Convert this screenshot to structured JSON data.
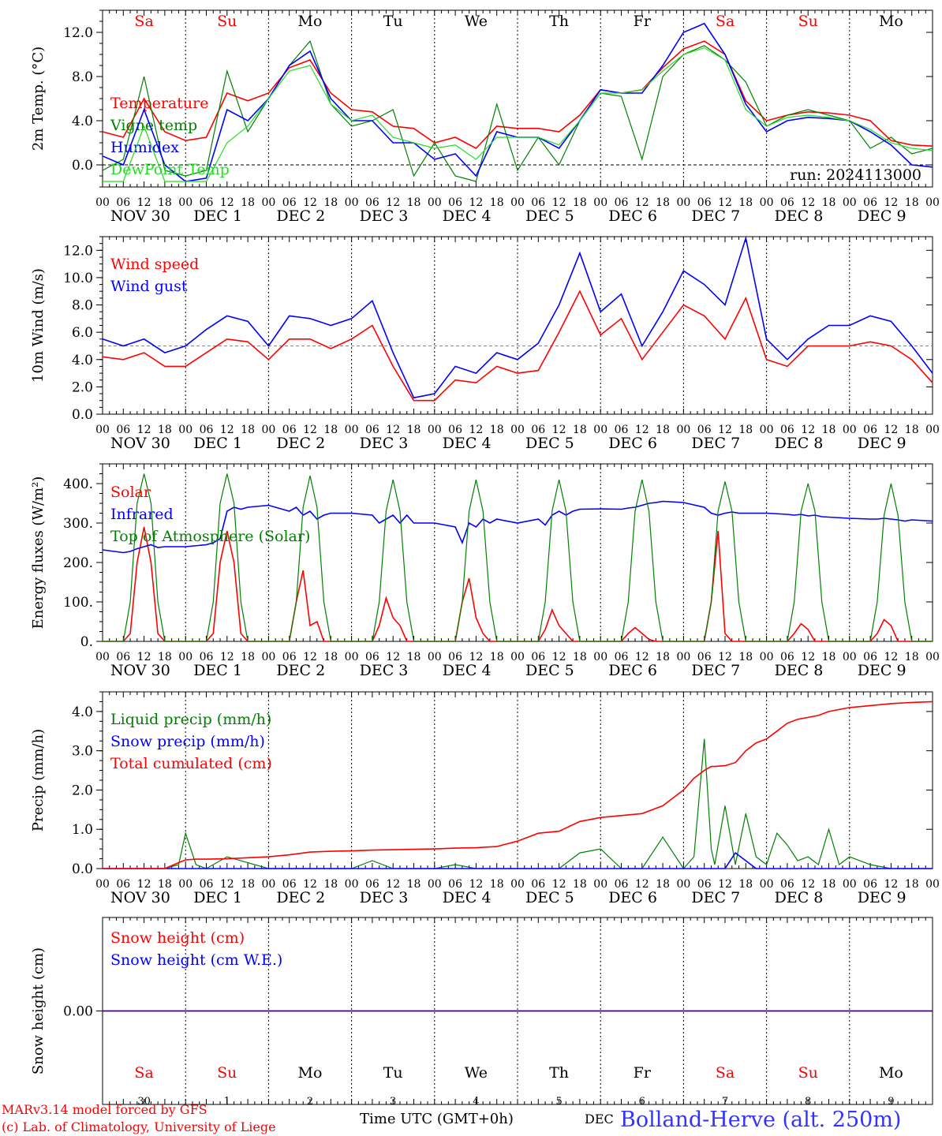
{
  "run_label": "run: 2024113000",
  "footer": {
    "line1": "MARv3.14 model forced by GFS",
    "line2": "(c) Lab. of Climatology, University of Liege",
    "xlabel": "Time UTC (GMT+0h)",
    "month": "DEC",
    "station": "Bolland-Herve (alt. 250m)"
  },
  "days": {
    "names": [
      "Sa",
      "Su",
      "Mo",
      "Tu",
      "We",
      "Th",
      "Fr",
      "Sa",
      "Su",
      "Mo"
    ],
    "weekend": [
      true,
      true,
      false,
      false,
      false,
      false,
      false,
      true,
      true,
      false
    ],
    "date_labels": [
      "NOV 30",
      "DEC  1",
      "DEC  2",
      "DEC  3",
      "DEC  4",
      "DEC  5",
      "DEC  6",
      "DEC  7",
      "DEC  8",
      "DEC  9"
    ],
    "day_numbers": [
      "30",
      "1",
      "2",
      "3",
      "4",
      "5",
      "6",
      "7",
      "8",
      "9"
    ],
    "hour_ticks": [
      "00",
      "06",
      "12",
      "18"
    ],
    "final_tick": "00"
  },
  "colors": {
    "red": "#ff0000",
    "green": "#008000",
    "blue": "#0000ff",
    "lightgreen": "#22dd22",
    "gray": "#888888"
  },
  "chart_data": [
    {
      "type": "line",
      "ylabel": "2m Temp. (°C)",
      "ylim": [
        -2.0,
        14.0
      ],
      "yticks": [
        0.0,
        4.0,
        8.0,
        12.0
      ],
      "ytick_labels": [
        "0.0",
        "4.0",
        "8.0",
        "12.0"
      ],
      "ref_line": 0.0,
      "x_hours": [
        0,
        6,
        12,
        18,
        24,
        30,
        36,
        42,
        48,
        54,
        60,
        66,
        72,
        78,
        84,
        90,
        96,
        102,
        108,
        114,
        120,
        126,
        132,
        138,
        144,
        150,
        156,
        162,
        168,
        174,
        180,
        186,
        192,
        198,
        204,
        210,
        216,
        222,
        228,
        234,
        240
      ],
      "series": [
        {
          "name": "Temperature",
          "color": "red",
          "values": [
            3.0,
            2.5,
            6.0,
            3.0,
            2.2,
            2.5,
            6.5,
            5.8,
            6.5,
            8.8,
            9.5,
            6.5,
            5.0,
            4.8,
            3.5,
            3.3,
            2.0,
            2.5,
            1.5,
            3.5,
            3.3,
            3.3,
            3.0,
            4.5,
            6.8,
            6.5,
            6.8,
            8.8,
            10.5,
            11.2,
            10.0,
            5.8,
            4.0,
            4.5,
            4.8,
            4.7,
            4.5,
            4.0,
            2.2,
            1.8,
            1.7
          ]
        },
        {
          "name": "Vigne temp",
          "color": "green",
          "values": [
            -0.5,
            0.5,
            8.0,
            -0.5,
            -1.0,
            -0.5,
            8.5,
            3.0,
            6.0,
            9.0,
            11.2,
            5.5,
            3.5,
            4.0,
            5.0,
            -1.0,
            2.0,
            -1.0,
            -1.5,
            5.5,
            -0.5,
            2.5,
            0.0,
            4.0,
            6.5,
            6.2,
            0.5,
            8.0,
            10.0,
            10.8,
            9.5,
            7.5,
            3.5,
            4.5,
            5.0,
            4.5,
            4.0,
            1.5,
            2.5,
            1.0,
            1.5
          ]
        },
        {
          "name": "Humidex",
          "color": "blue",
          "values": [
            0.8,
            0.0,
            5.0,
            0.0,
            -1.5,
            -1.2,
            5.0,
            4.0,
            6.0,
            9.0,
            10.3,
            6.0,
            4.0,
            4.0,
            2.0,
            2.0,
            0.5,
            1.0,
            -1.0,
            3.0,
            2.5,
            2.5,
            1.5,
            4.0,
            6.8,
            6.5,
            6.5,
            9.0,
            12.0,
            12.8,
            10.0,
            5.5,
            3.0,
            4.0,
            4.3,
            4.2,
            4.0,
            3.0,
            1.8,
            0.0,
            -0.2
          ]
        },
        {
          "name": "DewPoint Temp",
          "color": "lightgreen",
          "values": [
            -1.5,
            -1.5,
            3.5,
            -1.5,
            -1.5,
            -1.5,
            2.0,
            3.5,
            6.0,
            8.5,
            9.0,
            5.5,
            4.0,
            4.5,
            2.5,
            2.0,
            1.5,
            1.8,
            0.5,
            2.5,
            2.5,
            2.5,
            1.8,
            4.0,
            6.5,
            6.5,
            6.8,
            8.5,
            10.0,
            10.6,
            9.5,
            5.0,
            3.5,
            4.3,
            4.5,
            4.3,
            4.0,
            3.2,
            2.0,
            1.5,
            1.3
          ]
        }
      ]
    },
    {
      "type": "line",
      "ylabel": "10m Wind (m/s)",
      "ylim": [
        0.0,
        13.0
      ],
      "yticks": [
        0.0,
        2.0,
        4.0,
        6.0,
        8.0,
        10.0,
        12.0
      ],
      "ytick_labels": [
        "0.0",
        "2.0",
        "4.0",
        "6.0",
        "8.0",
        "10.0",
        "12.0"
      ],
      "ref_line": 5.0,
      "x_hours": [
        0,
        6,
        12,
        18,
        24,
        30,
        36,
        42,
        48,
        54,
        60,
        66,
        72,
        78,
        84,
        90,
        96,
        102,
        108,
        114,
        120,
        126,
        132,
        138,
        144,
        150,
        156,
        162,
        168,
        174,
        180,
        186,
        192,
        198,
        204,
        210,
        216,
        222,
        228,
        234,
        240
      ],
      "series": [
        {
          "name": "Wind speed",
          "color": "red",
          "values": [
            4.2,
            4.0,
            4.5,
            3.5,
            3.5,
            4.5,
            5.5,
            5.3,
            4.0,
            5.5,
            5.5,
            4.8,
            5.5,
            6.5,
            3.5,
            1.0,
            1.0,
            2.5,
            2.3,
            3.5,
            3.0,
            3.2,
            6.0,
            9.0,
            5.8,
            7.0,
            4.0,
            6.0,
            8.0,
            7.2,
            5.5,
            8.5,
            4.0,
            3.5,
            5.0,
            5.0,
            5.0,
            5.3,
            5.0,
            4.0,
            2.3
          ]
        },
        {
          "name": "Wind gust",
          "color": "blue",
          "values": [
            5.5,
            5.0,
            5.5,
            4.5,
            5.0,
            6.2,
            7.2,
            6.8,
            5.0,
            7.2,
            7.0,
            6.5,
            7.0,
            8.3,
            4.5,
            1.2,
            1.5,
            3.5,
            3.0,
            4.5,
            4.0,
            5.2,
            8.0,
            11.8,
            7.5,
            8.8,
            5.0,
            7.5,
            10.5,
            9.5,
            8.0,
            12.9,
            5.5,
            4.0,
            5.5,
            6.5,
            6.5,
            7.2,
            6.8,
            5.0,
            3.0
          ]
        }
      ]
    },
    {
      "type": "line",
      "ylabel": "Energy fluxes (W/m²)",
      "ylim": [
        0,
        450
      ],
      "yticks": [
        0,
        100,
        200,
        300,
        400
      ],
      "ytick_labels": [
        "0.",
        "100.",
        "200.",
        "300.",
        "400."
      ],
      "ref_line": null,
      "x_hours": [
        0,
        6,
        8,
        10,
        12,
        14,
        16,
        18,
        24,
        30,
        32,
        34,
        36,
        38,
        40,
        42,
        48,
        54,
        56,
        58,
        60,
        62,
        64,
        66,
        72,
        78,
        80,
        82,
        84,
        86,
        88,
        90,
        96,
        102,
        104,
        106,
        108,
        110,
        112,
        114,
        120,
        126,
        128,
        130,
        132,
        134,
        136,
        138,
        144,
        150,
        152,
        154,
        156,
        158,
        160,
        162,
        168,
        174,
        176,
        178,
        180,
        182,
        184,
        186,
        192,
        198,
        200,
        202,
        204,
        206,
        208,
        210,
        216,
        222,
        224,
        226,
        228,
        230,
        232,
        234,
        240
      ],
      "series": [
        {
          "name": "Solar",
          "color": "red",
          "values": [
            0,
            0,
            20,
            200,
            290,
            200,
            20,
            0,
            0,
            0,
            20,
            200,
            280,
            200,
            20,
            0,
            0,
            0,
            100,
            180,
            40,
            50,
            0,
            0,
            0,
            0,
            40,
            110,
            60,
            40,
            0,
            0,
            0,
            0,
            100,
            160,
            60,
            20,
            0,
            0,
            0,
            0,
            30,
            80,
            40,
            20,
            0,
            0,
            0,
            0,
            20,
            35,
            20,
            5,
            0,
            0,
            0,
            0,
            100,
            280,
            20,
            0,
            0,
            0,
            0,
            0,
            20,
            45,
            30,
            0,
            0,
            0,
            0,
            0,
            20,
            55,
            40,
            0,
            0,
            0,
            0
          ]
        },
        {
          "name": "Infrared",
          "color": "blue",
          "values": [
            232,
            225,
            228,
            235,
            240,
            245,
            238,
            240,
            240,
            245,
            250,
            260,
            330,
            340,
            335,
            340,
            345,
            330,
            340,
            320,
            330,
            310,
            320,
            325,
            325,
            320,
            300,
            310,
            320,
            300,
            320,
            300,
            300,
            290,
            250,
            300,
            290,
            310,
            300,
            310,
            300,
            310,
            295,
            320,
            330,
            320,
            330,
            335,
            336,
            335,
            338,
            340,
            345,
            350,
            352,
            355,
            352,
            340,
            325,
            320,
            325,
            328,
            325,
            325,
            325,
            322,
            320,
            322,
            318,
            320,
            316,
            315,
            312,
            310,
            310,
            312,
            310,
            308,
            305,
            308,
            305
          ]
        },
        {
          "name": "Top of Atmosphere (Solar)",
          "color": "green",
          "values": [
            0,
            0,
            100,
            350,
            425,
            350,
            100,
            0,
            0,
            0,
            100,
            350,
            425,
            350,
            100,
            0,
            0,
            0,
            100,
            340,
            420,
            340,
            100,
            0,
            0,
            0,
            100,
            330,
            410,
            330,
            100,
            0,
            0,
            0,
            100,
            330,
            410,
            330,
            100,
            0,
            0,
            0,
            100,
            330,
            410,
            330,
            100,
            0,
            0,
            0,
            100,
            330,
            410,
            330,
            100,
            0,
            0,
            0,
            100,
            330,
            405,
            330,
            100,
            0,
            0,
            0,
            100,
            330,
            400,
            330,
            100,
            0,
            0,
            0,
            100,
            320,
            400,
            320,
            100,
            0,
            0
          ]
        }
      ]
    },
    {
      "type": "line",
      "ylabel": "Precip (mm/h)",
      "ylim": [
        0.0,
        4.5
      ],
      "yticks": [
        0.0,
        1.0,
        2.0,
        3.0,
        4.0
      ],
      "ytick_labels": [
        "0.0",
        "1.0",
        "2.0",
        "3.0",
        "4.0"
      ],
      "ref_line": null,
      "x_hours": [
        0,
        18,
        22,
        24,
        27,
        30,
        36,
        48,
        54,
        60,
        66,
        72,
        78,
        84,
        90,
        96,
        102,
        108,
        114,
        120,
        126,
        132,
        138,
        144,
        150,
        156,
        162,
        168,
        171,
        174,
        176,
        177,
        180,
        183,
        186,
        189,
        192,
        195,
        198,
        201,
        204,
        207,
        210,
        213,
        216,
        222,
        228,
        234,
        240
      ],
      "series": [
        {
          "name": "Liquid precip (mm/h)",
          "color": "green",
          "values": [
            0,
            0,
            0.1,
            0.9,
            0.1,
            0,
            0.3,
            0,
            0,
            0,
            0,
            0,
            0.2,
            0,
            0,
            0,
            0.1,
            0,
            0,
            0,
            0,
            0,
            0.4,
            0.5,
            0,
            0,
            0.8,
            0,
            0.3,
            3.3,
            0.5,
            0.1,
            1.6,
            0.1,
            1.4,
            0.3,
            0.1,
            0.9,
            0.6,
            0.2,
            0.3,
            0.1,
            1.0,
            0.1,
            0.3,
            0.1,
            0,
            0,
            0
          ]
        },
        {
          "name": "Snow precip (mm/h)",
          "color": "blue",
          "values": [
            0,
            0,
            0,
            0,
            0,
            0,
            0,
            0,
            0,
            0,
            0,
            0,
            0,
            0,
            0,
            0,
            0,
            0,
            0,
            0,
            0,
            0,
            0,
            0,
            0,
            0,
            0,
            0,
            0,
            0,
            0,
            0,
            0,
            0.4,
            0.2,
            0,
            0,
            0,
            0,
            0,
            0,
            0,
            0,
            0,
            0,
            0,
            0,
            0,
            0
          ]
        },
        {
          "name": "Total cumulated (cm)",
          "color": "red",
          "values": [
            0,
            0,
            0.15,
            0.22,
            0.24,
            0.24,
            0.25,
            0.3,
            0.35,
            0.42,
            0.44,
            0.45,
            0.47,
            0.48,
            0.49,
            0.5,
            0.52,
            0.53,
            0.56,
            0.7,
            0.9,
            0.95,
            1.2,
            1.3,
            1.35,
            1.4,
            1.6,
            2.0,
            2.3,
            2.5,
            2.6,
            2.6,
            2.62,
            2.7,
            3.0,
            3.2,
            3.3,
            3.5,
            3.7,
            3.8,
            3.85,
            3.9,
            4.0,
            4.05,
            4.1,
            4.15,
            4.2,
            4.23,
            4.25
          ]
        }
      ]
    },
    {
      "type": "line",
      "ylabel": "Snow height (cm)",
      "ylim": [
        -1.0,
        1.0
      ],
      "yticks": [
        0.0
      ],
      "ytick_labels": [
        "0.00"
      ],
      "ref_line": null,
      "x_hours": [
        0,
        240
      ],
      "series": [
        {
          "name": "Snow height (cm)",
          "color": "red",
          "values": [
            0,
            0
          ]
        },
        {
          "name": "Snow height (cm W.E.)",
          "color": "blue",
          "values": [
            0,
            0
          ]
        }
      ]
    }
  ]
}
